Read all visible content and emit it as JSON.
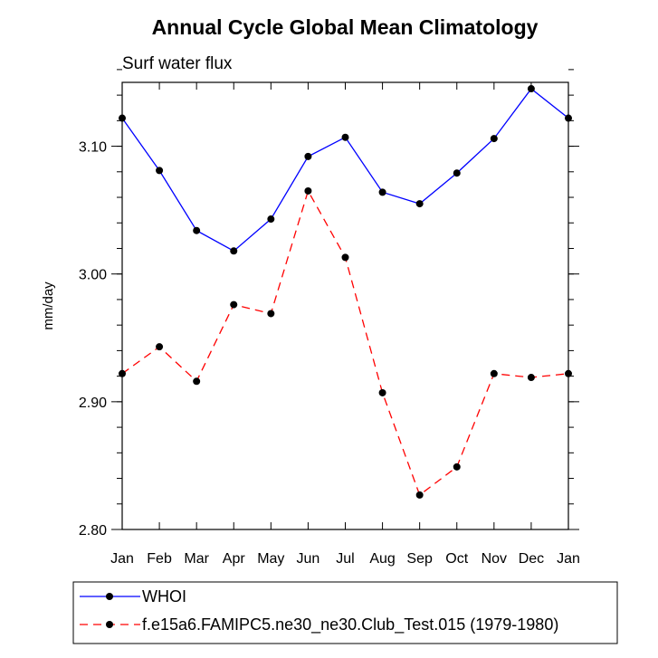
{
  "chart_data": {
    "type": "line",
    "title": "Annual Cycle Global Mean Climatology",
    "subtitle": "Surf water flux",
    "xlabel": "",
    "ylabel": "mm/day",
    "categories": [
      "Jan",
      "Feb",
      "Mar",
      "Apr",
      "May",
      "Jun",
      "Jul",
      "Aug",
      "Sep",
      "Oct",
      "Nov",
      "Dec",
      "Jan"
    ],
    "ylim": [
      2.8,
      3.15
    ],
    "yticks": [
      "2.80",
      "2.90",
      "3.00",
      "3.10"
    ],
    "ytick_values": [
      2.8,
      2.9,
      3.0,
      3.1
    ],
    "yminor_step": 0.02,
    "grid": false,
    "legend_position": "bottom",
    "series": [
      {
        "name": "WHOI",
        "color": "#0000ff",
        "dash": "solid",
        "values": [
          3.122,
          3.081,
          3.034,
          3.018,
          3.043,
          3.092,
          3.107,
          3.064,
          3.055,
          3.079,
          3.106,
          3.145,
          3.122
        ]
      },
      {
        "name": "f.e15a6.FAMIPC5.ne30_ne30.Club_Test.015 (1979-1980)",
        "color": "#ff0000",
        "dash": "dashed",
        "values": [
          2.922,
          2.943,
          2.916,
          2.976,
          2.969,
          3.065,
          3.013,
          2.907,
          2.827,
          2.849,
          2.922,
          2.919,
          2.922
        ]
      }
    ]
  }
}
